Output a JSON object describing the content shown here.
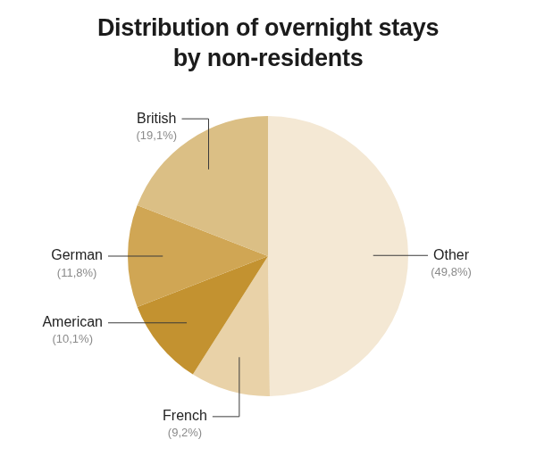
{
  "chart_data": {
    "type": "pie",
    "title": "Distribution of overnight stays\nby non-residents",
    "categories": [
      "Other",
      "French",
      "American",
      "German",
      "British"
    ],
    "values": [
      49.8,
      9.2,
      10.1,
      11.8,
      19.1
    ],
    "value_labels": [
      "(49,8%)",
      "(9,2%)",
      "(10,1%)",
      "(11,8%)",
      "(19,1%)"
    ],
    "colors": [
      "#f4e8d4",
      "#e9d2a8",
      "#c39230",
      "#d0a654",
      "#dbbf85"
    ],
    "data_labels": true
  }
}
